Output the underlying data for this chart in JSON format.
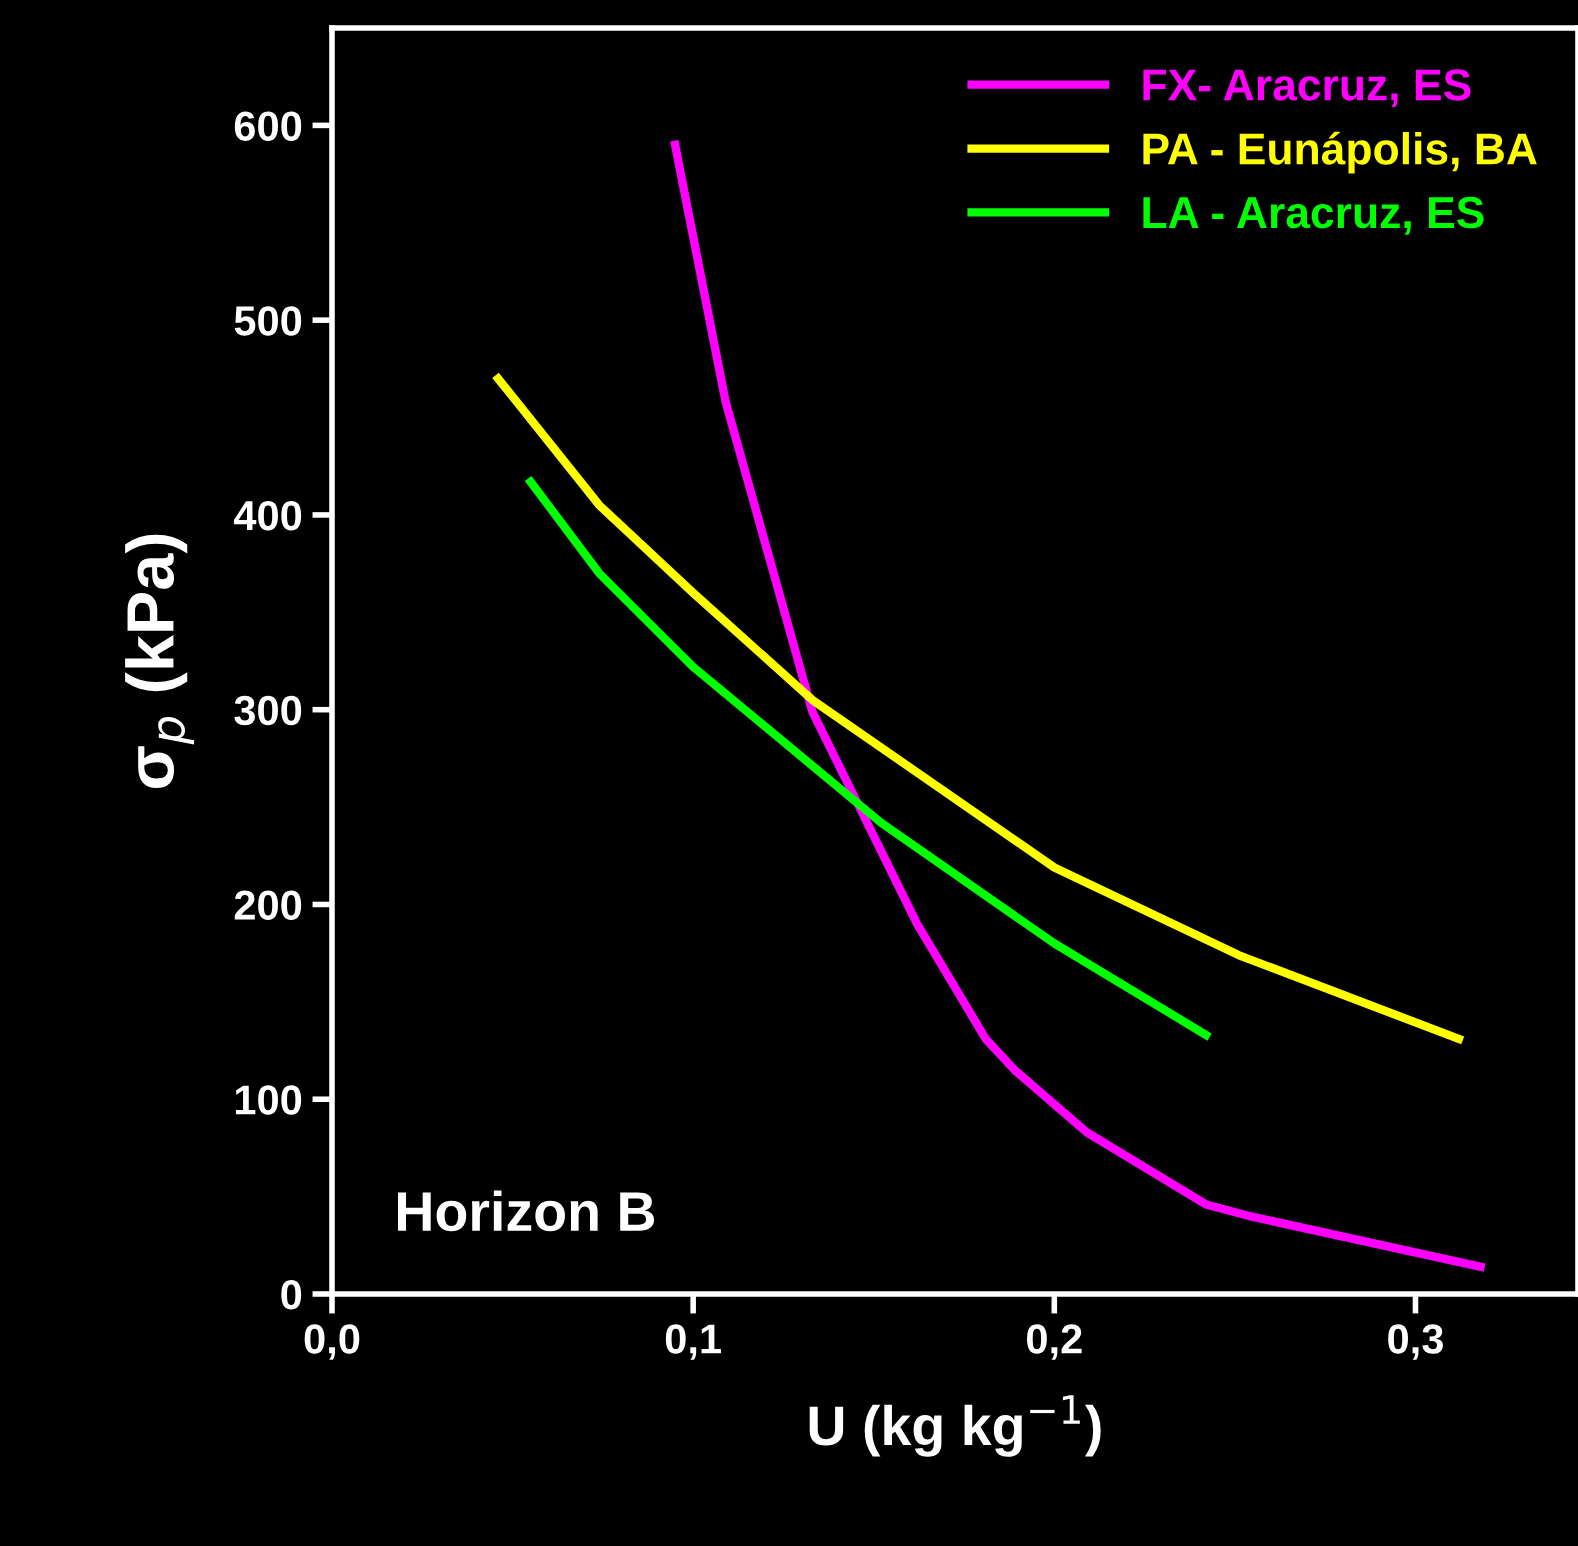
{
  "chart_data": {
    "type": "line",
    "xlabel": "U (kg kg$^{−1}$)",
    "ylabel": "σ$_{p}$ (kPa)",
    "xlim": [
      0,
      0.345
    ],
    "ylim": [
      0,
      650
    ],
    "xticks": [
      {
        "value": 0,
        "label": "0,0"
      },
      {
        "value": 0.1,
        "label": "0,1"
      },
      {
        "value": 0.2,
        "label": "0,2"
      },
      {
        "value": 0.3,
        "label": "0,3"
      }
    ],
    "yticks": [
      0,
      100,
      200,
      300,
      400,
      500,
      600
    ],
    "legend": "top right",
    "grid": false,
    "marker": "none",
    "line_style": "solid",
    "annotations": [
      "Horizon B"
    ],
    "series": [
      {
        "name": "FX- Aracruz, ES",
        "color": "#ff00ff",
        "x": [
          0.095,
          0.109,
          0.133,
          0.162,
          0.181,
          0.189,
          0.209,
          0.242,
          0.254,
          0.318
        ],
        "values": [
          590,
          458,
          299,
          190,
          131,
          115,
          83,
          46,
          40,
          14
        ]
      },
      {
        "name": "PA - Eunápolis, BA",
        "color": "#ffff00",
        "x": [
          0.046,
          0.074,
          0.1,
          0.133,
          0.2,
          0.251,
          0.312
        ],
        "values": [
          470,
          405,
          360,
          305,
          219,
          174,
          131
        ]
      },
      {
        "name": "LA - Aracruz, ES",
        "color": "#00ff00",
        "x": [
          0.055,
          0.074,
          0.1,
          0.152,
          0.2,
          0.242
        ],
        "values": [
          417,
          370,
          322,
          242,
          180,
          133
        ]
      }
    ]
  }
}
